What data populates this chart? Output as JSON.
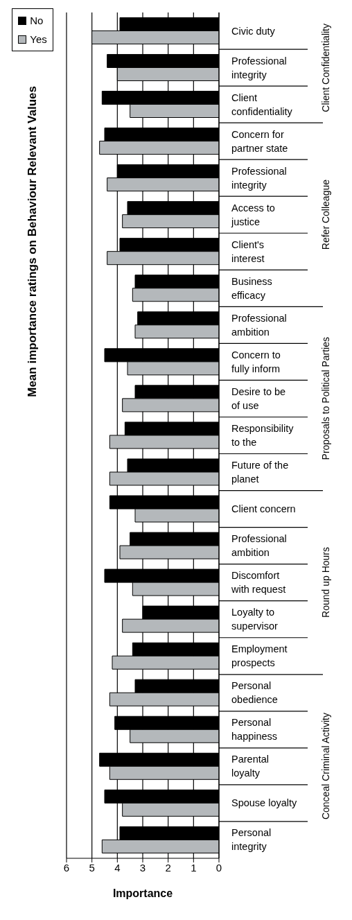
{
  "chart_data": {
    "type": "bar",
    "orientation": "horizontal",
    "title": "Mean importance ratings on Behaviour Relevant Values",
    "xlabel": "Importance",
    "categories": [
      "Civic duty",
      "Professional integrity",
      "Client confidentiality",
      "Concern for partner state",
      "Professional integrity",
      "Access to justice",
      "Client's interest",
      "Business efficacy",
      "Professional ambition",
      "Concern to fully inform",
      "Desire to be of use",
      "Responsibility to the",
      "Future of the planet",
      "Client concern",
      "Professional ambition",
      "Discomfort with request",
      "Loyalty to supervisor",
      "Employment prospects",
      "Personal obedience",
      "Personal happiness",
      "Parental loyalty",
      "Spouse loyalty",
      "Personal integrity"
    ],
    "series": [
      {
        "name": "No",
        "color": "#000000",
        "values": [
          3.9,
          4.4,
          4.6,
          4.5,
          4.0,
          3.6,
          3.9,
          3.3,
          3.2,
          4.5,
          3.3,
          3.7,
          3.6,
          4.3,
          3.5,
          4.5,
          3.0,
          3.4,
          3.3,
          4.1,
          4.7,
          4.5,
          3.9
        ]
      },
      {
        "name": "Yes",
        "color": "#b4b8bb",
        "values": [
          5.0,
          4.0,
          3.5,
          4.7,
          4.4,
          3.8,
          4.4,
          3.4,
          3.3,
          3.6,
          3.8,
          4.3,
          4.3,
          3.3,
          3.9,
          3.4,
          3.8,
          4.2,
          4.3,
          3.5,
          4.3,
          3.8,
          4.6
        ]
      }
    ],
    "xlim": [
      6,
      0
    ],
    "xticks": [
      6,
      5,
      4,
      3,
      2,
      1,
      0
    ],
    "grid": "x",
    "legend": "left",
    "annotations": [
      "Client Confidentiality",
      "Refer Colleague",
      "Proposals to Political Parties",
      "Round up Hours",
      "Conceal Criminal Activity"
    ]
  }
}
